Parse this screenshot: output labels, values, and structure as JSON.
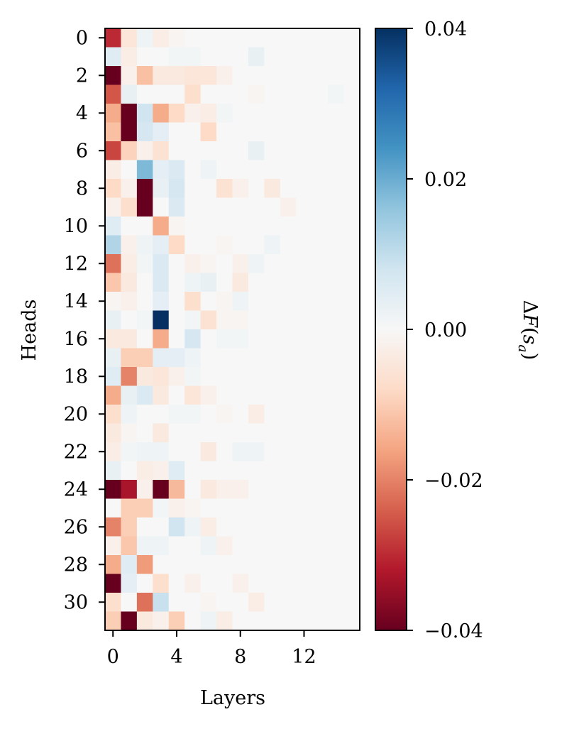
{
  "chart_data": {
    "type": "heatmap",
    "xlabel": "Layers",
    "ylabel": "Heads",
    "colorbar_label_parts": [
      "Δ",
      "F",
      "(",
      "s",
      "a",
      ")"
    ],
    "colormap": "RdBu",
    "vmin": -0.04,
    "vmax": 0.04,
    "colorbar_ticks": [
      0.04,
      0.02,
      0.0,
      -0.02,
      -0.04
    ],
    "colorbar_tick_labels": [
      "0.04",
      "0.02",
      "0.00",
      "−0.02",
      "−0.04"
    ],
    "x_ticks": [
      0,
      4,
      8,
      12
    ],
    "x_tick_labels": [
      "0",
      "4",
      "8",
      "12"
    ],
    "y_ticks": [
      0,
      2,
      4,
      6,
      8,
      10,
      12,
      14,
      16,
      18,
      20,
      22,
      24,
      26,
      28,
      30
    ],
    "y_tick_labels": [
      "0",
      "2",
      "4",
      "6",
      "8",
      "10",
      "12",
      "14",
      "16",
      "18",
      "20",
      "22",
      "24",
      "26",
      "28",
      "30"
    ],
    "n_layers": 16,
    "n_heads": 32,
    "values": [
      [
        -0.03,
        -0.005,
        0.002,
        -0.003,
        -0.001,
        0,
        0,
        0,
        0,
        0,
        0,
        0,
        0,
        0,
        0,
        0
      ],
      [
        0.005,
        -0.003,
        0,
        0,
        0.001,
        0.001,
        0,
        0,
        0,
        0.003,
        0,
        0,
        0,
        0,
        0,
        0
      ],
      [
        -0.04,
        -0.002,
        -0.012,
        -0.004,
        -0.004,
        -0.005,
        -0.005,
        -0.002,
        0,
        0,
        0,
        0,
        0,
        0,
        0,
        0
      ],
      [
        -0.025,
        0.003,
        0,
        0,
        0,
        -0.007,
        0,
        0,
        0,
        -0.001,
        0,
        0,
        0,
        0,
        0.001,
        0
      ],
      [
        -0.015,
        -0.04,
        0.008,
        -0.015,
        -0.008,
        -0.002,
        -0.003,
        0.001,
        0,
        0,
        0,
        0,
        0,
        0,
        0,
        0
      ],
      [
        -0.012,
        -0.04,
        0.007,
        0.004,
        0,
        0,
        -0.008,
        0,
        0,
        0,
        0,
        0,
        0,
        0,
        0,
        0
      ],
      [
        -0.027,
        -0.009,
        -0.002,
        -0.006,
        0,
        0,
        0,
        0,
        0,
        0.003,
        0,
        0,
        0,
        0,
        0,
        0
      ],
      [
        -0.003,
        0,
        0.018,
        0.004,
        0.006,
        0,
        0.002,
        0,
        0,
        0,
        0,
        0,
        0,
        0,
        0,
        0
      ],
      [
        -0.008,
        -0.002,
        -0.04,
        0.003,
        0.007,
        0,
        0,
        -0.006,
        -0.002,
        0,
        -0.004,
        0,
        0,
        0,
        0,
        0
      ],
      [
        -0.002,
        -0.007,
        -0.04,
        0,
        0.006,
        0,
        0,
        0,
        0,
        0,
        0,
        -0.002,
        0,
        0,
        0,
        0
      ],
      [
        0.005,
        0,
        0,
        -0.015,
        -0.001,
        0,
        0,
        0,
        0,
        0,
        0,
        0,
        0,
        0,
        0,
        0
      ],
      [
        0.012,
        -0.002,
        0.002,
        0.004,
        -0.008,
        0,
        0,
        -0.001,
        0,
        0,
        0.002,
        0,
        0,
        0,
        0,
        0
      ],
      [
        -0.022,
        -0.003,
        0.001,
        0.006,
        0,
        -0.002,
        -0.001,
        0,
        -0.002,
        0.002,
        0,
        0,
        0,
        0,
        0,
        0
      ],
      [
        -0.011,
        -0.004,
        0,
        0.006,
        0,
        0.002,
        0.003,
        0,
        -0.004,
        0,
        0,
        0,
        0,
        0,
        0,
        0
      ],
      [
        -0.001,
        -0.002,
        0,
        0.004,
        0,
        -0.007,
        0,
        -0.001,
        0.002,
        0,
        0,
        0,
        0,
        0,
        0,
        0
      ],
      [
        0.003,
        0,
        0.001,
        0.04,
        0,
        0.001,
        -0.006,
        -0.001,
        -0.001,
        0,
        0,
        0,
        0,
        0,
        0,
        0
      ],
      [
        -0.004,
        -0.004,
        0,
        -0.015,
        0,
        0.007,
        0,
        0.001,
        0.001,
        0,
        0,
        0,
        0,
        0,
        0,
        0
      ],
      [
        0.003,
        -0.01,
        -0.01,
        0.004,
        0.004,
        0.002,
        0,
        0,
        0,
        0,
        0,
        0,
        0,
        0,
        0,
        0
      ],
      [
        0.005,
        -0.02,
        -0.004,
        -0.005,
        -0.002,
        0.001,
        0,
        0,
        0,
        0,
        0,
        0,
        0,
        0,
        0,
        0
      ],
      [
        -0.015,
        0.003,
        0.006,
        -0.004,
        0,
        -0.005,
        -0.002,
        0,
        0,
        0,
        0,
        0,
        0,
        0,
        0,
        0
      ],
      [
        -0.007,
        0.002,
        0,
        0,
        0.001,
        0.001,
        0,
        -0.001,
        0,
        -0.003,
        0,
        0,
        0,
        0,
        0,
        0
      ],
      [
        -0.004,
        -0.001,
        0,
        -0.004,
        0,
        0,
        0,
        0,
        0,
        0,
        0,
        0,
        0,
        0,
        0,
        0
      ],
      [
        -0.003,
        0.001,
        0.002,
        0.002,
        0,
        0,
        -0.004,
        0,
        0.002,
        0.002,
        0,
        0,
        0,
        0,
        0,
        0
      ],
      [
        0.003,
        0,
        -0.003,
        -0.002,
        0.005,
        0,
        0,
        0,
        0,
        0,
        0,
        0,
        0,
        0,
        0,
        0
      ],
      [
        -0.04,
        -0.033,
        -0.002,
        -0.04,
        -0.013,
        0,
        -0.004,
        -0.002,
        -0.002,
        0,
        0,
        0,
        0,
        0,
        0,
        0
      ],
      [
        0,
        -0.01,
        -0.01,
        0.001,
        -0.002,
        -0.001,
        0,
        0,
        0,
        0,
        0,
        0,
        0,
        0,
        0,
        0
      ],
      [
        -0.02,
        -0.01,
        0,
        0,
        0.008,
        0.002,
        -0.003,
        0,
        0,
        0,
        0,
        0,
        0,
        0,
        0,
        0
      ],
      [
        -0.002,
        -0.011,
        0.002,
        0.002,
        0,
        0,
        0.002,
        -0.002,
        0,
        0,
        0,
        0,
        0,
        0,
        0,
        0
      ],
      [
        -0.015,
        0.005,
        -0.017,
        0,
        0,
        0,
        0,
        0,
        0,
        0,
        0,
        0,
        0,
        0,
        0,
        0
      ],
      [
        -0.04,
        0.004,
        0,
        -0.007,
        0,
        -0.002,
        0,
        0,
        -0.002,
        0,
        0,
        0,
        0,
        0,
        0,
        0
      ],
      [
        -0.007,
        0,
        -0.022,
        0.009,
        0,
        0,
        -0.001,
        0,
        0,
        -0.003,
        0,
        0,
        0,
        0,
        0,
        0
      ],
      [
        -0.01,
        -0.04,
        -0.004,
        -0.002,
        -0.01,
        0,
        0.002,
        -0.003,
        0,
        0,
        0,
        0,
        0,
        0,
        0,
        0
      ]
    ]
  }
}
